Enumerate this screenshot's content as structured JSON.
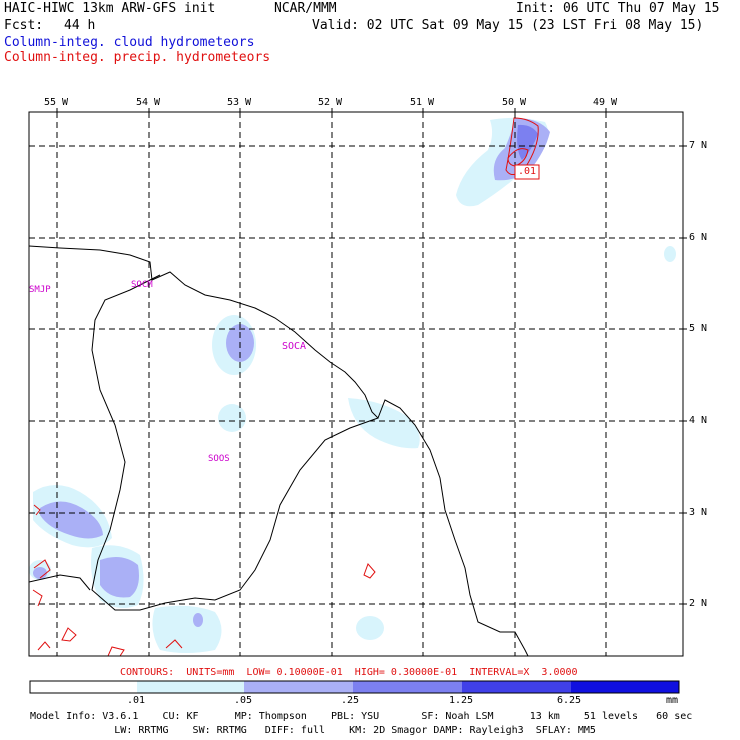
{
  "header": {
    "model_title": "HAIC-HIWC 13km ARW-GFS init",
    "org": "NCAR/MMM",
    "init": "Init: 06 UTC Thu 07 May 15",
    "fcst_label": "Fcst:",
    "fcst_value": "44 h",
    "valid": "Valid: 02 UTC Sat 09 May 15 (23 LST Fri 08 May 15)",
    "field_cloud": "Column-integ. cloud hydrometeors",
    "field_precip": "Column-integ. precip. hydrometeors"
  },
  "colors": {
    "cloud_text": "#1010d8",
    "precip_text": "#e01010",
    "station": "#cc00cc",
    "level1": "#d8f4fc",
    "level2": "#aab0f6",
    "level3": "#7c80f0",
    "level4": "#4040e8",
    "level5": "#1010e0"
  },
  "map": {
    "lon_labels": [
      "55 W",
      "54 W",
      "53 W",
      "52 W",
      "51 W",
      "50 W",
      "49 W"
    ],
    "lat_labels": [
      "7 N",
      "6 N",
      "5 N",
      "4 N",
      "3 N",
      "2 N"
    ],
    "stations": [
      "SMJP",
      "SOCM",
      "SOCA",
      "SOOS"
    ],
    "contour_label": ".01"
  },
  "contours_line": "CONTOURS:  UNITS=mm  LOW= 0.10000E-01  HIGH= 0.30000E-01  INTERVAL=X  3.0000",
  "colorbar": {
    "ticks": [
      ".01",
      ".05",
      ".25",
      "1.25",
      "6.25"
    ],
    "unit": "mm"
  },
  "model_info": {
    "line1": "Model Info: V3.6.1    CU: KF      MP: Thompson    PBL: YSU       SF: Noah LSM      13 km    51 levels   60 sec",
    "line2": "              LW: RRTMG    SW: RRTMG   DIFF: full    KM: 2D Smagor DAMP: Rayleigh3  SFLAY: MM5"
  }
}
